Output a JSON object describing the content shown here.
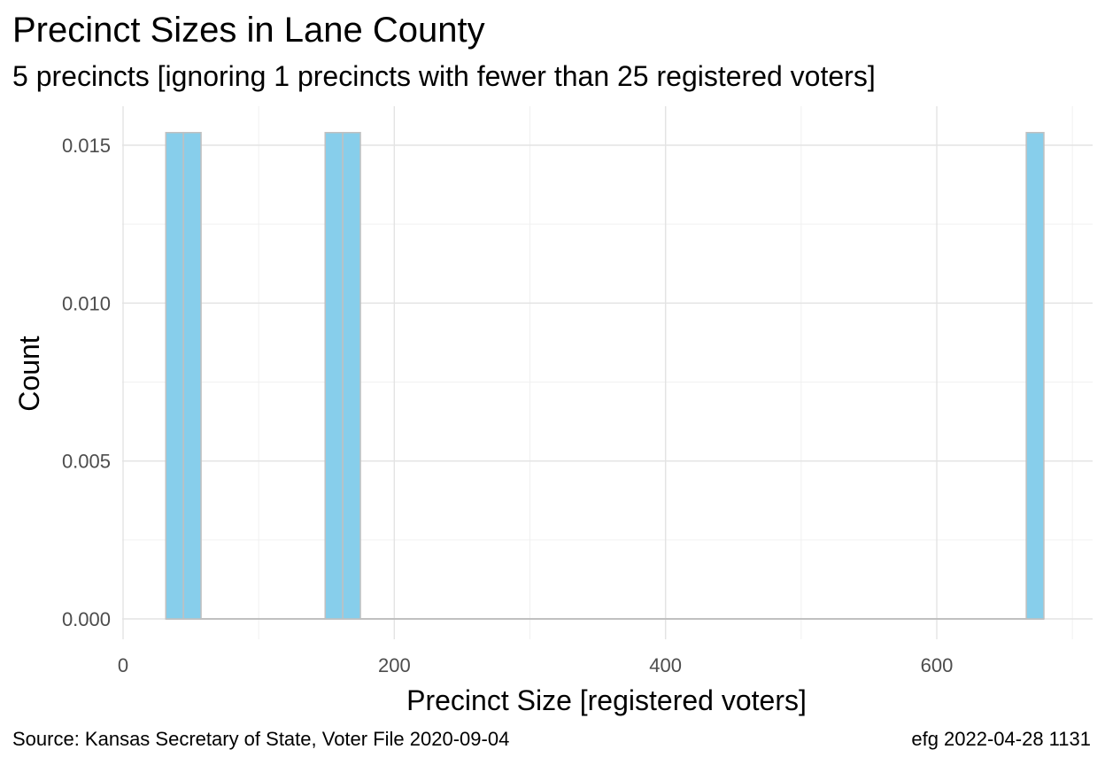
{
  "chart_data": {
    "type": "bar",
    "title": "Precinct Sizes in Lane County",
    "subtitle": "5 precincts [ignoring 1 precincts with fewer than 25 registered voters]",
    "xlabel": "Precinct Size [registered voters]",
    "ylabel": "Count",
    "xlim": [
      -8,
      700
    ],
    "ylim": [
      -0.0006,
      0.0155
    ],
    "x_ticks": [
      0,
      200,
      400,
      600
    ],
    "x_tick_labels": [
      "0",
      "200",
      "400",
      "600"
    ],
    "y_ticks": [
      0.0,
      0.005,
      0.01,
      0.015
    ],
    "y_tick_labels": [
      "0.000",
      "0.005",
      "0.010",
      "0.015"
    ],
    "grid": true,
    "bars": [
      {
        "x0": 31.5,
        "x1": 44.5,
        "value": 0.0154
      },
      {
        "x0": 44.5,
        "x1": 57.5,
        "value": 0.0154
      },
      {
        "x0": 149.0,
        "x1": 162.0,
        "value": 0.0154
      },
      {
        "x0": 162.0,
        "x1": 175.0,
        "value": 0.0154
      },
      {
        "x0": 666.0,
        "x1": 679.0,
        "value": 0.0154
      }
    ],
    "fill_color": "#87CEEB",
    "edge_color": "#C0C0C0"
  },
  "caption": {
    "source": "Source:  Kansas Secretary of State, Voter File  2020-09-04",
    "credit": "efg 2022-04-28 1131"
  }
}
